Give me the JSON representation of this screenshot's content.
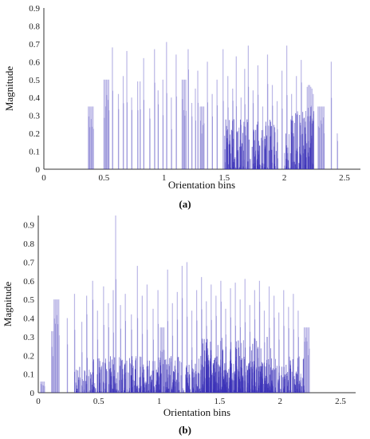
{
  "chart_data": [
    {
      "type": "bar",
      "panel_label": "(a)",
      "xlabel": "Orientation bins",
      "ylabel": "Magnitude",
      "xlim": [
        0,
        2.5
      ],
      "ylim": [
        0,
        0.9
      ],
      "xticks": [
        "0",
        "0.5",
        "1",
        "1.5",
        "2",
        "2.5"
      ],
      "yticks": [
        "0",
        "0.1",
        "0.2",
        "0.3",
        "0.4",
        "0.5",
        "0.6",
        "0.7",
        "0.8",
        "0.9"
      ],
      "grid": false,
      "bar_color": "#3b32b8",
      "seed": 17,
      "dense_regions": [
        [
          1.5,
          1.95,
          0.28
        ],
        [
          2.0,
          2.25,
          0.35
        ]
      ],
      "peaks": [
        {
          "x": 0.37,
          "y": 0.35
        },
        {
          "x": 0.38,
          "y": 0.35
        },
        {
          "x": 0.39,
          "y": 0.35
        },
        {
          "x": 0.4,
          "y": 0.35
        },
        {
          "x": 0.41,
          "y": 0.35
        },
        {
          "x": 0.5,
          "y": 0.5
        },
        {
          "x": 0.51,
          "y": 0.5
        },
        {
          "x": 0.52,
          "y": 0.5
        },
        {
          "x": 0.53,
          "y": 0.5
        },
        {
          "x": 0.54,
          "y": 0.5
        },
        {
          "x": 0.57,
          "y": 0.68
        },
        {
          "x": 0.62,
          "y": 0.42
        },
        {
          "x": 0.66,
          "y": 0.52
        },
        {
          "x": 0.69,
          "y": 0.66
        },
        {
          "x": 0.73,
          "y": 0.4
        },
        {
          "x": 0.78,
          "y": 0.49
        },
        {
          "x": 0.8,
          "y": 0.49
        },
        {
          "x": 0.83,
          "y": 0.62
        },
        {
          "x": 0.88,
          "y": 0.34
        },
        {
          "x": 0.92,
          "y": 0.67
        },
        {
          "x": 0.95,
          "y": 0.44
        },
        {
          "x": 0.99,
          "y": 0.5
        },
        {
          "x": 1.02,
          "y": 0.71
        },
        {
          "x": 1.06,
          "y": 0.4
        },
        {
          "x": 1.1,
          "y": 0.64
        },
        {
          "x": 1.15,
          "y": 0.5
        },
        {
          "x": 1.16,
          "y": 0.5
        },
        {
          "x": 1.17,
          "y": 0.5
        },
        {
          "x": 1.18,
          "y": 0.5
        },
        {
          "x": 1.2,
          "y": 0.67
        },
        {
          "x": 1.23,
          "y": 0.37
        },
        {
          "x": 1.26,
          "y": 0.45
        },
        {
          "x": 1.28,
          "y": 0.55
        },
        {
          "x": 1.3,
          "y": 0.35
        },
        {
          "x": 1.31,
          "y": 0.35
        },
        {
          "x": 1.32,
          "y": 0.35
        },
        {
          "x": 1.33,
          "y": 0.35
        },
        {
          "x": 1.36,
          "y": 0.6
        },
        {
          "x": 1.4,
          "y": 0.42
        },
        {
          "x": 1.44,
          "y": 0.5
        },
        {
          "x": 1.49,
          "y": 0.67
        },
        {
          "x": 1.53,
          "y": 0.52
        },
        {
          "x": 1.57,
          "y": 0.45
        },
        {
          "x": 1.6,
          "y": 0.63
        },
        {
          "x": 1.64,
          "y": 0.4
        },
        {
          "x": 1.67,
          "y": 0.56
        },
        {
          "x": 1.7,
          "y": 0.69
        },
        {
          "x": 1.74,
          "y": 0.44
        },
        {
          "x": 1.78,
          "y": 0.58
        },
        {
          "x": 1.82,
          "y": 0.35
        },
        {
          "x": 1.86,
          "y": 0.64
        },
        {
          "x": 1.9,
          "y": 0.47
        },
        {
          "x": 1.94,
          "y": 0.38
        },
        {
          "x": 1.98,
          "y": 0.55
        },
        {
          "x": 2.02,
          "y": 0.69
        },
        {
          "x": 2.06,
          "y": 0.42
        },
        {
          "x": 2.1,
          "y": 0.52
        },
        {
          "x": 2.14,
          "y": 0.61
        },
        {
          "x": 2.19,
          "y": 0.46
        },
        {
          "x": 2.2,
          "y": 0.47
        },
        {
          "x": 2.21,
          "y": 0.47
        },
        {
          "x": 2.22,
          "y": 0.46
        },
        {
          "x": 2.23,
          "y": 0.45
        },
        {
          "x": 2.24,
          "y": 0.42
        },
        {
          "x": 2.28,
          "y": 0.35
        },
        {
          "x": 2.29,
          "y": 0.35
        },
        {
          "x": 2.3,
          "y": 0.35
        },
        {
          "x": 2.31,
          "y": 0.35
        },
        {
          "x": 2.32,
          "y": 0.35
        },
        {
          "x": 2.33,
          "y": 0.35
        },
        {
          "x": 2.39,
          "y": 0.6
        },
        {
          "x": 2.44,
          "y": 0.2
        }
      ]
    },
    {
      "type": "bar",
      "panel_label": "(b)",
      "xlabel": "Orientation bins",
      "ylabel": "Magnitude",
      "xlim": [
        0,
        2.5
      ],
      "ylim": [
        0,
        0.95
      ],
      "xticks": [
        "0",
        "0.5",
        "1",
        "1.5",
        "2",
        "2.5"
      ],
      "yticks": [
        "0",
        "0.1",
        "0.2",
        "0.3",
        "0.4",
        "0.5",
        "0.6",
        "0.7",
        "0.8",
        "0.9"
      ],
      "grid": false,
      "bar_color": "#3b32b8",
      "seed": 53,
      "dense_regions": [
        [
          0.3,
          2.2,
          0.2
        ],
        [
          1.35,
          1.95,
          0.3
        ]
      ],
      "peaks": [
        {
          "x": 0.02,
          "y": 0.06
        },
        {
          "x": 0.03,
          "y": 0.06
        },
        {
          "x": 0.04,
          "y": 0.06
        },
        {
          "x": 0.05,
          "y": 0.06
        },
        {
          "x": 0.11,
          "y": 0.33
        },
        {
          "x": 0.12,
          "y": 0.33
        },
        {
          "x": 0.13,
          "y": 0.5
        },
        {
          "x": 0.14,
          "y": 0.5
        },
        {
          "x": 0.15,
          "y": 0.5
        },
        {
          "x": 0.16,
          "y": 0.5
        },
        {
          "x": 0.17,
          "y": 0.5
        },
        {
          "x": 0.24,
          "y": 0.4
        },
        {
          "x": 0.3,
          "y": 0.53
        },
        {
          "x": 0.36,
          "y": 0.38
        },
        {
          "x": 0.4,
          "y": 0.52
        },
        {
          "x": 0.45,
          "y": 0.6
        },
        {
          "x": 0.49,
          "y": 0.44
        },
        {
          "x": 0.54,
          "y": 0.57
        },
        {
          "x": 0.58,
          "y": 0.48
        },
        {
          "x": 0.62,
          "y": 0.55
        },
        {
          "x": 0.64,
          "y": 0.95
        },
        {
          "x": 0.68,
          "y": 0.47
        },
        {
          "x": 0.72,
          "y": 0.53
        },
        {
          "x": 0.77,
          "y": 0.42
        },
        {
          "x": 0.82,
          "y": 0.68
        },
        {
          "x": 0.86,
          "y": 0.52
        },
        {
          "x": 0.9,
          "y": 0.58
        },
        {
          "x": 0.95,
          "y": 0.45
        },
        {
          "x": 0.99,
          "y": 0.55
        },
        {
          "x": 1.01,
          "y": 0.35
        },
        {
          "x": 1.02,
          "y": 0.35
        },
        {
          "x": 1.03,
          "y": 0.35
        },
        {
          "x": 1.04,
          "y": 0.35
        },
        {
          "x": 1.07,
          "y": 0.66
        },
        {
          "x": 1.11,
          "y": 0.48
        },
        {
          "x": 1.15,
          "y": 0.54
        },
        {
          "x": 1.19,
          "y": 0.68
        },
        {
          "x": 1.23,
          "y": 0.7
        },
        {
          "x": 1.27,
          "y": 0.44
        },
        {
          "x": 1.31,
          "y": 0.55
        },
        {
          "x": 1.35,
          "y": 0.62
        },
        {
          "x": 1.39,
          "y": 0.49
        },
        {
          "x": 1.43,
          "y": 0.58
        },
        {
          "x": 1.47,
          "y": 0.52
        },
        {
          "x": 1.51,
          "y": 0.6
        },
        {
          "x": 1.55,
          "y": 0.45
        },
        {
          "x": 1.59,
          "y": 0.56
        },
        {
          "x": 1.63,
          "y": 0.59
        },
        {
          "x": 1.67,
          "y": 0.5
        },
        {
          "x": 1.71,
          "y": 0.61
        },
        {
          "x": 1.75,
          "y": 0.47
        },
        {
          "x": 1.79,
          "y": 0.55
        },
        {
          "x": 1.83,
          "y": 0.6
        },
        {
          "x": 1.87,
          "y": 0.44
        },
        {
          "x": 1.91,
          "y": 0.57
        },
        {
          "x": 1.95,
          "y": 0.52
        },
        {
          "x": 1.99,
          "y": 0.43
        },
        {
          "x": 2.03,
          "y": 0.55
        },
        {
          "x": 2.07,
          "y": 0.46
        },
        {
          "x": 2.11,
          "y": 0.53
        },
        {
          "x": 2.15,
          "y": 0.44
        },
        {
          "x": 2.2,
          "y": 0.35
        },
        {
          "x": 2.21,
          "y": 0.35
        },
        {
          "x": 2.22,
          "y": 0.35
        },
        {
          "x": 2.23,
          "y": 0.35
        },
        {
          "x": 2.24,
          "y": 0.35
        }
      ]
    }
  ]
}
